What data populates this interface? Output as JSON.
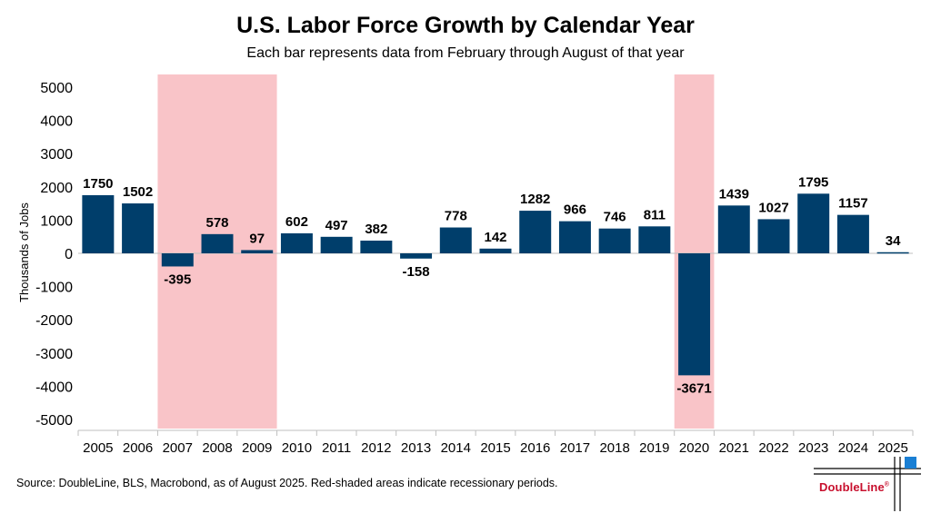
{
  "chart_data": {
    "type": "bar",
    "title": "U.S. Labor Force Growth by Calendar Year",
    "subtitle": "Each bar represents data from February through August of that year",
    "xlabel": "",
    "ylabel": "Thousands of Jobs",
    "ylim": [
      -5000,
      5000
    ],
    "yticks": [
      "5000",
      "4000",
      "3000",
      "2000",
      "1000",
      "0",
      "-1000",
      "-2000",
      "-3000",
      "-4000",
      "-5000"
    ],
    "categories": [
      "2005",
      "2006",
      "2007",
      "2008",
      "2009",
      "2010",
      "2011",
      "2012",
      "2013",
      "2014",
      "2015",
      "2016",
      "2017",
      "2018",
      "2019",
      "2020",
      "2021",
      "2022",
      "2023",
      "2024",
      "2025"
    ],
    "values": [
      1750,
      1502,
      -395,
      578,
      97,
      602,
      497,
      382,
      -158,
      778,
      142,
      1282,
      966,
      746,
      811,
      -3671,
      1439,
      1027,
      1795,
      1157,
      34
    ],
    "recession_periods": [
      [
        "2007",
        "2009"
      ],
      [
        "2020",
        "2020"
      ]
    ],
    "bar_color": "#003e6b",
    "recession_color": "#f9c4c8"
  },
  "footer": {
    "source": "Source: DoubleLine, BLS, Macrobond, as of August 2025. Red-shaded areas indicate recessionary periods.",
    "logo_text": "DoubleLine",
    "logo_mark": "®"
  },
  "colors": {
    "logo_red": "#c8102e",
    "logo_blue": "#1a7fd4"
  }
}
